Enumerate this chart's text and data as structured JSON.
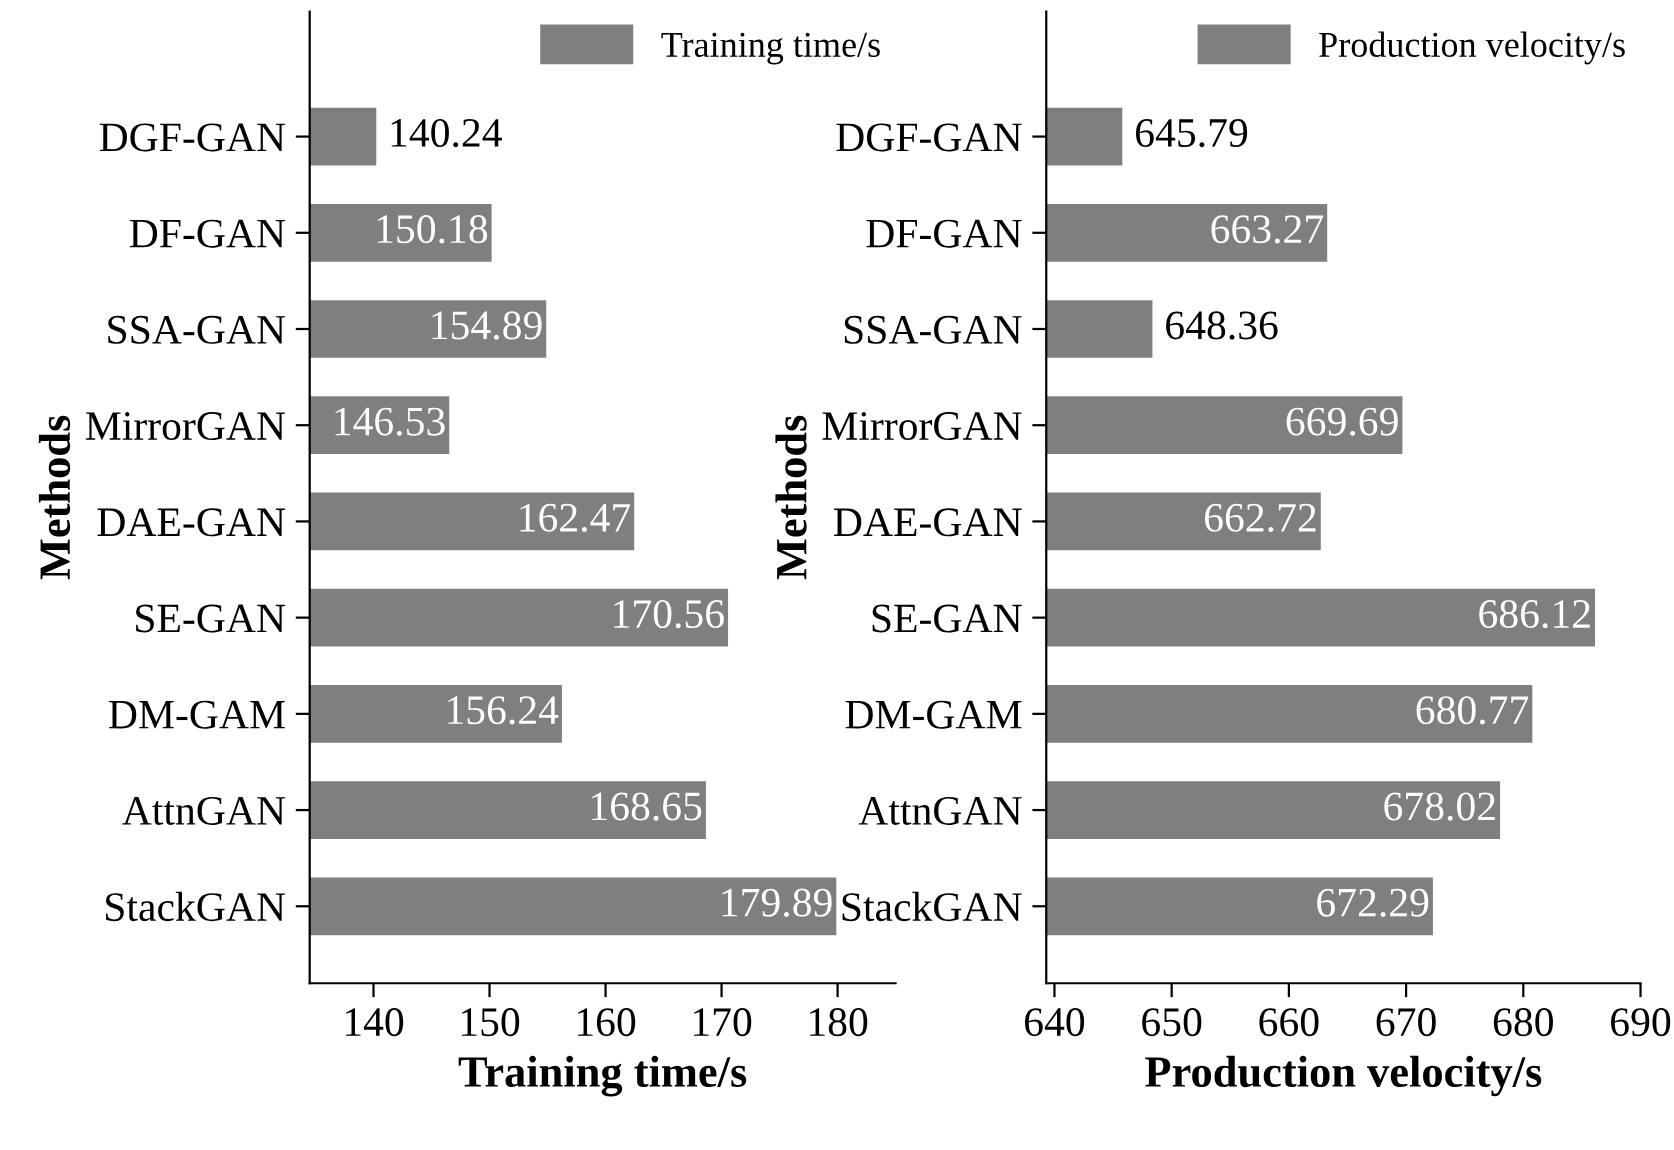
{
  "chart_data": [
    {
      "type": "bar",
      "orientation": "horizontal",
      "categories": [
        "DGF-GAN",
        "DF-GAN",
        "SSA-GAN",
        "MirrorGAN",
        "DAE-GAN",
        "SE-GAN",
        "DM-GAM",
        "AttnGAN",
        "StackGAN"
      ],
      "series": [
        {
          "name": "Training time/s",
          "color": "#7f7f7f",
          "values": [
            140.24,
            150.18,
            154.89,
            146.53,
            162.47,
            170.56,
            156.24,
            168.65,
            179.89
          ]
        }
      ],
      "xlabel": "Training time/s",
      "ylabel": "Methods",
      "xlim": [
        134.5,
        185
      ],
      "xticks": [
        140,
        150,
        160,
        170,
        180
      ],
      "data_labels": true,
      "legend": "top right",
      "grid": false
    },
    {
      "type": "bar",
      "orientation": "horizontal",
      "categories": [
        "DGF-GAN",
        "DF-GAN",
        "SSA-GAN",
        "MirrorGAN",
        "DAE-GAN",
        "SE-GAN",
        "DM-GAM",
        "AttnGAN",
        "StackGAN"
      ],
      "series": [
        {
          "name": "Production velocity/s",
          "color": "#7f7f7f",
          "values": [
            645.79,
            663.27,
            648.36,
            669.69,
            662.72,
            686.12,
            680.77,
            678.02,
            672.29
          ]
        }
      ],
      "xlabel": "Production velocity/s",
      "ylabel": "Methods",
      "xlim": [
        639.3,
        690
      ],
      "xticks": [
        640,
        650,
        660,
        670,
        680,
        690
      ],
      "data_labels": true,
      "legend": "top right",
      "grid": false
    }
  ]
}
